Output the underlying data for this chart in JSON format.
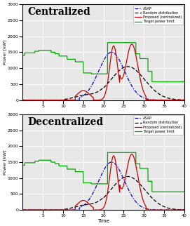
{
  "title1": "Centralized",
  "title2": "Decentralized",
  "xlabel": "Time",
  "ylabel": "Power [kW]",
  "xlim": [
    0,
    40
  ],
  "ylim": [
    0,
    3000
  ],
  "yticks": [
    0,
    500,
    1000,
    1500,
    2000,
    2500,
    3000
  ],
  "xticks": [
    5,
    10,
    15,
    20,
    25,
    30,
    35,
    40
  ],
  "legend_labels": [
    "ASAP",
    "Random distribution",
    "Proposed (centralized)",
    "Target power limit"
  ],
  "asap_color": "#0000cc",
  "random_color": "#000000",
  "proposed_color": "#cc0000",
  "target_color": "#00aa00",
  "bg_color": "#e8e8e8",
  "fig_bg": "#ffffff"
}
